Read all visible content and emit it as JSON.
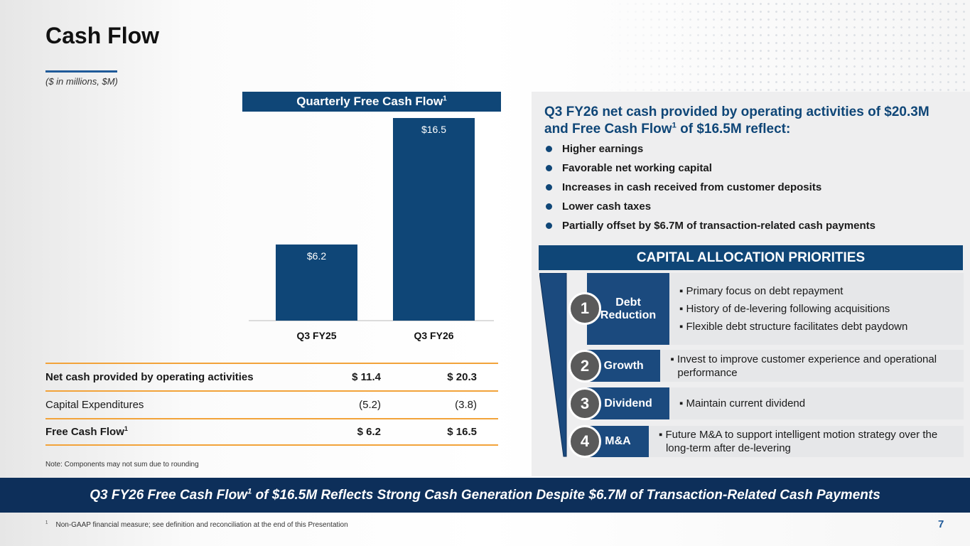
{
  "title": "Cash Flow",
  "subtitle": "($ in millions, $M)",
  "chart_header": "Quarterly Free Cash Flow",
  "sup1": "1",
  "chart_data": {
    "type": "bar",
    "title": "Quarterly Free Cash Flow",
    "categories": [
      "Q3 FY25",
      "Q3 FY26"
    ],
    "values": [
      6.2,
      16.5
    ],
    "labels": [
      "$6.2",
      "$16.5"
    ],
    "ylim": [
      0,
      16.5
    ],
    "color": "#0f4677"
  },
  "table": {
    "rows": [
      {
        "label": "Net cash provided by operating activities",
        "v1": "$ 11.4",
        "v2": "$ 20.3"
      },
      {
        "label": "Capital Expenditures",
        "v1": "(5.2)",
        "v2": "(3.8)"
      },
      {
        "label": "Free Cash Flow",
        "v1": "$ 6.2",
        "v2": "$ 16.5"
      }
    ]
  },
  "note": "Note: Components may not sum due to rounding",
  "right_heading": {
    "l1a": "Q3 FY26 net cash provided by operating activities of $20.3M",
    "l2a": "and Free Cash Flow",
    "l2b": " of $16.5M reflect:"
  },
  "bullets": [
    "Higher earnings",
    "Favorable net working capital",
    "Increases in cash received from customer deposits",
    "Lower cash taxes",
    "Partially offset by $6.7M of transaction-related cash payments"
  ],
  "capital": {
    "heading": "CAPITAL ALLOCATION PRIORITIES",
    "items": [
      {
        "num": "1",
        "label": "Debt Reduction",
        "points": [
          "Primary focus on debt repayment",
          "History of de-levering following acquisitions",
          "Flexible debt structure facilitates debt paydown"
        ]
      },
      {
        "num": "2",
        "label": "Growth",
        "points": [
          "Invest to improve customer experience and operational performance"
        ]
      },
      {
        "num": "3",
        "label": "Dividend",
        "points": [
          "Maintain current dividend"
        ]
      },
      {
        "num": "4",
        "label": "M&A",
        "points": [
          "Future M&A to support intelligent motion strategy over the long-term after de-levering"
        ]
      }
    ]
  },
  "banner": {
    "a": "Q3 FY26 Free Cash Flow",
    "b": " of $16.5M Reflects Strong Cash Generation Despite $6.7M of Transaction-Related Cash Payments"
  },
  "footnote": "Non-GAAP financial measure; see definition and reconciliation at the end of this Presentation",
  "page_number": "7"
}
